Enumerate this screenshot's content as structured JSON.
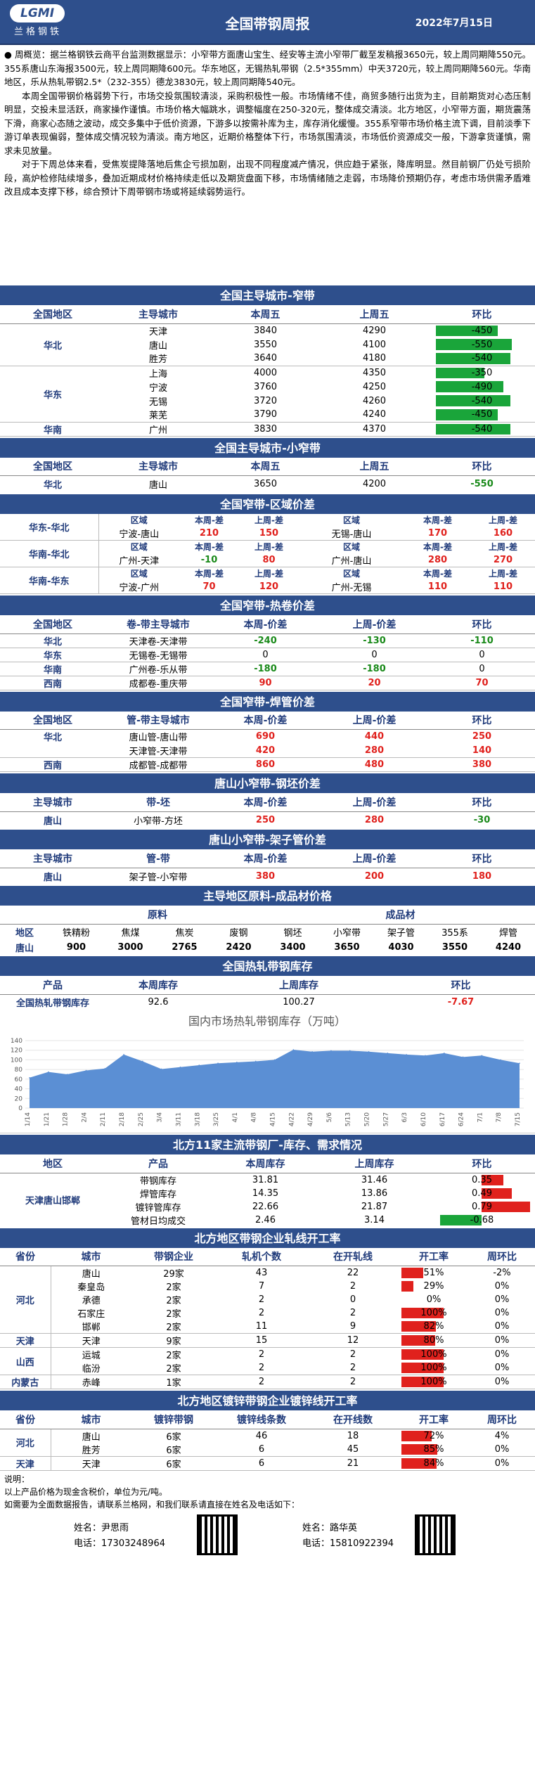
{
  "header": {
    "logo_badge": "LGMI",
    "logo_cn": "兰格钢铁",
    "title": "全国带钢周报",
    "date": "2022年7月15日"
  },
  "intro": {
    "p1": "● 周概览：据兰格钢铁云商平台监测数据显示：小窄带方面唐山宝生、经安等主流小窄带厂截至发稿报3650元，较上周同期降550元。355系唐山东海报3500元，较上周同期降600元。华东地区，无锡热轧带钢（2.5*355mm）中天3720元，较上周同期降560元。华南地区，乐从热轧带钢2.5*（232-355）德龙3830元，较上周同期降540元。",
    "p2": "本周全国带钢价格弱势下行，市场交投氛围较清淡，采购积极性一般。市场情绪不佳，商贸多随行出货为主，目前期货对心态压制明显，交投未显活跃，商家操作谨慎。市场价格大幅跳水，调整幅度在250-320元，整体成交清淡。北方地区，小窄带方面，期货震荡下滑，商家心态随之波动，成交多集中于低价资源，下游多以按需补库为主，库存消化缓慢。355系窄带市场价格主流下调，目前淡季下游订单表现偏弱，整体成交情况较为清淡。南方地区，近期价格整体下行，市场氛围清淡，市场低价资源成交一般，下游拿货谨慎，需求未见放量。",
    "p3": "对于下周总体来看，受焦炭提降落地后焦企亏损加剧，出现不同程度减产情况，供应趋于紧张，降库明显。然目前钢厂仍处亏损阶段，高炉检修陆续增多，叠加近期成材价格持续走低以及期货盘面下移，市场情绪随之走弱，市场降价预期仍存，考虑市场供需矛盾难改且成本支撑下移，综合预计下周带钢市场或将延续弱势运行。"
  },
  "s1": {
    "title": "全国主导城市-窄带",
    "headers": [
      "全国地区",
      "主导城市",
      "本周五",
      "上周五",
      "环比"
    ],
    "groups": [
      {
        "region": "华北",
        "rows": [
          {
            "city": "天津",
            "cur": "3840",
            "prev": "4290",
            "chg": "-450",
            "v": -450
          },
          {
            "city": "唐山",
            "cur": "3550",
            "prev": "4100",
            "chg": "-550",
            "v": -550
          },
          {
            "city": "胜芳",
            "cur": "3640",
            "prev": "4180",
            "chg": "-540",
            "v": -540
          }
        ]
      },
      {
        "region": "华东",
        "rows": [
          {
            "city": "上海",
            "cur": "4000",
            "prev": "4350",
            "chg": "-350",
            "v": -350
          },
          {
            "city": "宁波",
            "cur": "3760",
            "prev": "4250",
            "chg": "-490",
            "v": -490
          },
          {
            "city": "无锡",
            "cur": "3720",
            "prev": "4260",
            "chg": "-540",
            "v": -540
          },
          {
            "city": "莱芜",
            "cur": "3790",
            "prev": "4240",
            "chg": "-450",
            "v": -450
          }
        ]
      },
      {
        "region": "华南",
        "rows": [
          {
            "city": "广州",
            "cur": "3830",
            "prev": "4370",
            "chg": "-540",
            "v": -540
          }
        ]
      }
    ]
  },
  "s2": {
    "title": "全国主导城市-小窄带",
    "headers": [
      "全国地区",
      "主导城市",
      "本周五",
      "上周五",
      "环比"
    ],
    "row": {
      "region": "华北",
      "city": "唐山",
      "cur": "3650",
      "prev": "4200",
      "chg": "-550"
    }
  },
  "s3": {
    "title": "全国窄带-区域价差",
    "sub": [
      "区域",
      "本周-差",
      "上周-差",
      "区域",
      "本周-差",
      "上周-差"
    ],
    "rows": [
      {
        "grp": "华东-华北",
        "a": "宁波-唐山",
        "a1": "210",
        "a2": "150",
        "b": "无锡-唐山",
        "b1": "170",
        "b2": "160",
        "a1c": "red",
        "a2c": "red"
      },
      {
        "grp": "华南-华北",
        "a": "广州-天津",
        "a1": "-10",
        "a2": "80",
        "b": "广州-唐山",
        "b1": "280",
        "b2": "270",
        "a1c": "green",
        "a2c": "red"
      },
      {
        "grp": "华南-华东",
        "a": "宁波-广州",
        "a1": "70",
        "a2": "120",
        "b": "广州-无锡",
        "b1": "110",
        "b2": "110",
        "a1c": "red",
        "a2c": "red"
      }
    ]
  },
  "s4": {
    "title": "全国窄带-热卷价差",
    "headers": [
      "全国地区",
      "卷-带主导城市",
      "本周-价差",
      "上周-价差",
      "环比"
    ],
    "rows": [
      {
        "region": "华北",
        "city": "天津卷-天津带",
        "cur": "-240",
        "prev": "-130",
        "chg": "-110",
        "cc": "green",
        "pc": "green",
        "hc": "green"
      },
      {
        "region": "华东",
        "city": "无锡卷-无锡带",
        "cur": "0",
        "prev": "0",
        "chg": "0",
        "cc": "",
        "pc": "",
        "hc": ""
      },
      {
        "region": "华南",
        "city": "广州卷-乐从带",
        "cur": "-180",
        "prev": "-180",
        "chg": "0",
        "cc": "green",
        "pc": "green",
        "hc": ""
      },
      {
        "region": "西南",
        "city": "成都卷-重庆带",
        "cur": "90",
        "prev": "20",
        "chg": "70",
        "cc": "red",
        "pc": "red",
        "hc": "red"
      }
    ]
  },
  "s5": {
    "title": "全国窄带-焊管价差",
    "headers": [
      "全国地区",
      "管-带主导城市",
      "本周-价差",
      "上周-价差",
      "环比"
    ],
    "rows": [
      {
        "region": "华北",
        "city": "唐山管-唐山带",
        "cur": "690",
        "prev": "440",
        "chg": "250"
      },
      {
        "region": "",
        "city": "天津管-天津带",
        "cur": "420",
        "prev": "280",
        "chg": "140"
      },
      {
        "region": "西南",
        "city": "成都管-成都带",
        "cur": "860",
        "prev": "480",
        "chg": "380"
      }
    ]
  },
  "s6": {
    "title": "唐山小窄带-钢坯价差",
    "headers": [
      "主导城市",
      "带-坯",
      "本周-价差",
      "上周-价差",
      "环比"
    ],
    "row": {
      "region": "唐山",
      "city": "小窄带-方坯",
      "cur": "250",
      "prev": "280",
      "chg": "-30"
    }
  },
  "s7": {
    "title": "唐山小窄带-架子管价差",
    "headers": [
      "主导城市",
      "管-带",
      "本周-价差",
      "上周-价差",
      "环比"
    ],
    "row": {
      "region": "唐山",
      "city": "架子管-小窄带",
      "cur": "380",
      "prev": "200",
      "chg": "180"
    }
  },
  "s8": {
    "title": "主导地区原料-成品材价格",
    "raw": "原料",
    "fin": "成品材",
    "cols": [
      "地区",
      "铁精粉",
      "焦煤",
      "焦炭",
      "废钢",
      "钢坯",
      "小窄带",
      "架子管",
      "355系",
      "焊管"
    ],
    "vals": [
      "唐山",
      "900",
      "3000",
      "2765",
      "2420",
      "3400",
      "3650",
      "4030",
      "3550",
      "4240"
    ]
  },
  "s9": {
    "title": "全国热轧带钢库存",
    "headers": [
      "产品",
      "本周库存",
      "上周库存",
      "环比"
    ],
    "row": {
      "name": "全国热轧带钢库存",
      "cur": "92.6",
      "prev": "100.27",
      "chg": "-7.67"
    }
  },
  "chart_data": {
    "type": "area",
    "title": "国内市场热轧带钢库存（万吨）",
    "ylim": [
      0,
      140
    ],
    "yticks": [
      "0",
      "20",
      "40",
      "60",
      "80",
      "100",
      "120",
      "140"
    ],
    "x": [
      "1/14",
      "1/21",
      "1/28",
      "2/4",
      "2/11",
      "2/18",
      "2/25",
      "3/4",
      "3/11",
      "3/18",
      "3/25",
      "4/1",
      "4/8",
      "4/15",
      "4/22",
      "4/29",
      "5/6",
      "5/13",
      "5/20",
      "5/27",
      "6/3",
      "6/10",
      "6/17",
      "6/24",
      "7/1",
      "7/8",
      "7/15"
    ],
    "values": [
      63,
      75,
      70,
      78,
      82,
      111,
      97,
      81,
      85,
      89,
      93,
      95,
      97,
      100,
      121,
      117,
      119,
      119,
      117,
      114,
      111,
      109,
      114,
      106,
      109,
      100,
      93
    ],
    "color": "#5b8fd4"
  },
  "s10": {
    "title": "北方11家主流带钢厂-库存、需求情况",
    "headers": [
      "地区",
      "产品",
      "本周库存",
      "上周库存",
      "环比"
    ],
    "region": "天津唐山邯郸",
    "rows": [
      {
        "name": "带钢库存",
        "cur": "31.81",
        "prev": "31.46",
        "chg": "0.35",
        "v": 0.35
      },
      {
        "name": "焊管库存",
        "cur": "14.35",
        "prev": "13.86",
        "chg": "0.49",
        "v": 0.49
      },
      {
        "name": "镀锌管库存",
        "cur": "22.66",
        "prev": "21.87",
        "chg": "0.79",
        "v": 0.79
      },
      {
        "name": "管材日均成交",
        "cur": "2.46",
        "prev": "3.14",
        "chg": "-0.68",
        "v": -0.68
      }
    ]
  },
  "s11": {
    "title": "北方地区带钢企业轧线开工率",
    "headers": [
      "省份",
      "城市",
      "带钢企业",
      "轧机个数",
      "在开轧线",
      "开工率",
      "周环比"
    ],
    "groups": [
      {
        "prov": "河北",
        "rows": [
          {
            "city": "唐山",
            "ent": "29家",
            "mill": "43",
            "open": "22",
            "rate": "51%",
            "r": 51,
            "wk": "-2%"
          },
          {
            "city": "秦皇岛",
            "ent": "2家",
            "mill": "7",
            "open": "2",
            "rate": "29%",
            "r": 29,
            "wk": "0%"
          },
          {
            "city": "承德",
            "ent": "2家",
            "mill": "2",
            "open": "0",
            "rate": "0%",
            "r": 0,
            "wk": "0%"
          },
          {
            "city": "石家庄",
            "ent": "2家",
            "mill": "2",
            "open": "2",
            "rate": "100%",
            "r": 100,
            "wk": "0%"
          },
          {
            "city": "邯郸",
            "ent": "2家",
            "mill": "11",
            "open": "9",
            "rate": "82%",
            "r": 82,
            "wk": "0%"
          }
        ]
      },
      {
        "prov": "天津",
        "rows": [
          {
            "city": "天津",
            "ent": "9家",
            "mill": "15",
            "open": "12",
            "rate": "80%",
            "r": 80,
            "wk": "0%"
          }
        ]
      },
      {
        "prov": "山西",
        "rows": [
          {
            "city": "运城",
            "ent": "2家",
            "mill": "2",
            "open": "2",
            "rate": "100%",
            "r": 100,
            "wk": "0%"
          },
          {
            "city": "临汾",
            "ent": "2家",
            "mill": "2",
            "open": "2",
            "rate": "100%",
            "r": 100,
            "wk": "0%"
          }
        ]
      },
      {
        "prov": "内蒙古",
        "rows": [
          {
            "city": "赤峰",
            "ent": "1家",
            "mill": "2",
            "open": "2",
            "rate": "100%",
            "r": 100,
            "wk": "0%"
          }
        ]
      }
    ]
  },
  "s12": {
    "title": "北方地区镀锌带钢企业镀锌线开工率",
    "headers": [
      "省份",
      "城市",
      "镀锌带钢",
      "镀锌线条数",
      "在开线数",
      "开工率",
      "周环比"
    ],
    "groups": [
      {
        "prov": "河北",
        "rows": [
          {
            "city": "唐山",
            "ent": "6家",
            "mill": "46",
            "open": "18",
            "rate": "72%",
            "r": 72,
            "wk": "4%"
          },
          {
            "city": "胜芳",
            "ent": "6家",
            "mill": "6",
            "open": "45",
            "rate": "85%",
            "r": 85,
            "wk": "0%"
          }
        ]
      },
      {
        "prov": "天津",
        "rows": [
          {
            "city": "天津",
            "ent": "6家",
            "mill": "6",
            "open": "21",
            "rate": "84%",
            "r": 84,
            "wk": "0%"
          }
        ]
      }
    ]
  },
  "footer": {
    "l1": "说明：",
    "l2": "以上产品价格为现金含税价，单位为元/吨。",
    "l3": "如需要为全面数据报告，请联系兰格网，和我们联系请直接在姓名及电话如下：",
    "c1_name": "姓名：尹思雨",
    "c1_tel": "电话：17303248964",
    "c2_name": "姓名：路华英",
    "c2_tel": "电话：15810922394"
  }
}
